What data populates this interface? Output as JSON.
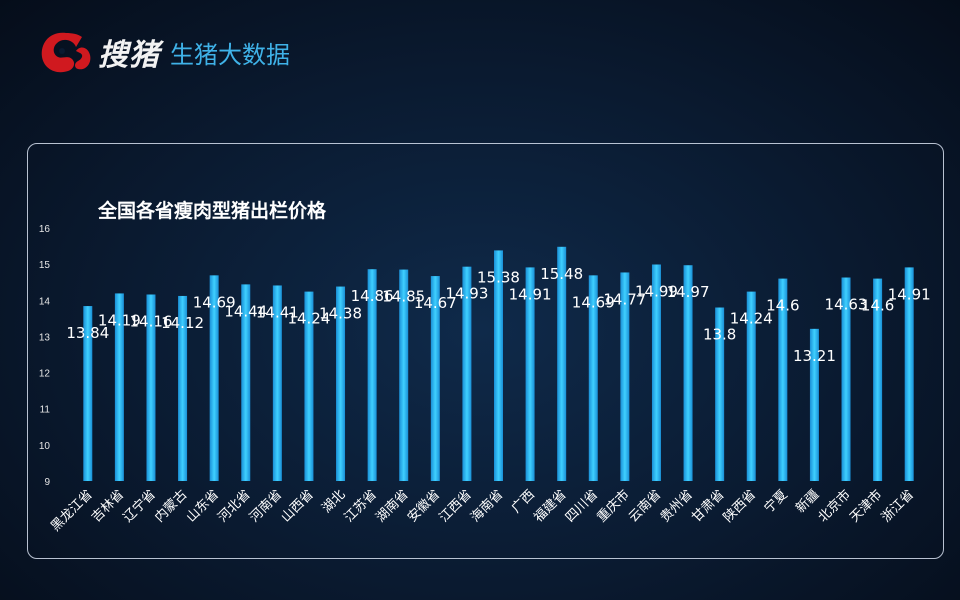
{
  "header": {
    "brand_name": "搜猪",
    "brand_subtitle": "生猪大数据",
    "logo_icon": "pig-logo-icon",
    "colors": {
      "logo": "#d0191f",
      "subtitle": "#3fb2e8"
    }
  },
  "chart_data": {
    "type": "bar",
    "title": "全国各省瘦肉型猪出栏价格",
    "xlabel": "",
    "ylabel": "",
    "ylim": [
      9,
      16
    ],
    "yticks": [
      9,
      10,
      11,
      12,
      13,
      14,
      15,
      16
    ],
    "grid": false,
    "bar_color": "#1fb4ef",
    "categories": [
      "黑龙江省",
      "吉林省",
      "辽宁省",
      "内蒙古",
      "山东省",
      "河北省",
      "河南省",
      "山西省",
      "湖北",
      "江苏省",
      "湖南省",
      "安徽省",
      "江西省",
      "海南省",
      "广西",
      "福建省",
      "四川省",
      "重庆市",
      "云南省",
      "贵州省",
      "甘肃省",
      "陕西省",
      "宁夏",
      "新疆",
      "北京市",
      "天津市",
      "浙江省"
    ],
    "values": [
      13.84,
      14.19,
      14.16,
      14.12,
      14.69,
      14.44,
      14.41,
      14.24,
      14.38,
      14.86,
      14.85,
      14.67,
      14.93,
      15.38,
      14.91,
      15.48,
      14.69,
      14.77,
      14.99,
      14.97,
      13.8,
      14.24,
      14.6,
      13.21,
      14.63,
      14.6,
      14.91
    ]
  }
}
